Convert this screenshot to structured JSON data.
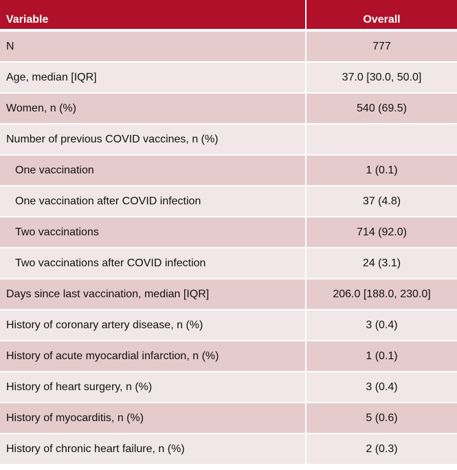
{
  "table": {
    "headers": {
      "variable": "Variable",
      "overall": "Overall"
    },
    "rows": [
      {
        "label": "N",
        "value": "777"
      },
      {
        "label": "Age, median [IQR]",
        "value": "37.0 [30.0, 50.0]"
      },
      {
        "label": "Women, n (%)",
        "value": "540 (69.5)"
      },
      {
        "label": "Number of previous COVID vaccines, n (%)",
        "value": ""
      },
      {
        "label": "One vaccination",
        "value": "1 (0.1)"
      },
      {
        "label": "One vaccination after COVID infection",
        "value": "37 (4.8)"
      },
      {
        "label": "Two vaccinations",
        "value": "714 (92.0)"
      },
      {
        "label": "Two vaccinations after COVID infection",
        "value": "24 (3.1)"
      },
      {
        "label": "Days since last vaccination, median [IQR]",
        "value": "206.0 [188.0, 230.0]"
      },
      {
        "label": "History of coronary artery disease, n (%)",
        "value": "3 (0.4)"
      },
      {
        "label": "History of acute myocardial infarction, n (%)",
        "value": "1 (0.1)"
      },
      {
        "label": "History of heart surgery, n (%)",
        "value": "3 (0.4)"
      },
      {
        "label": "History of myocarditis, n (%)",
        "value": "5 (0.6)"
      },
      {
        "label": "History of chronic heart failure, n (%)",
        "value": "2 (0.3)"
      }
    ]
  },
  "colors": {
    "header_bg": "#b0102a",
    "row_dark": "#e6cbcc",
    "row_light": "#f1e7e8"
  }
}
